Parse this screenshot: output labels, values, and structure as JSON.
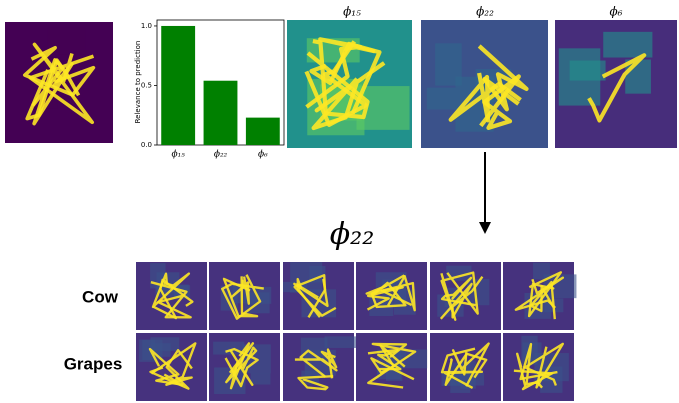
{
  "chart_data": {
    "type": "bar",
    "ylabel": "Relevance to prediction",
    "categories": [
      "ϕ₁₅",
      "ϕ₂₂",
      "ϕ₆"
    ],
    "values": [
      1.0,
      0.54,
      0.23
    ],
    "color": "#008000",
    "ylim": [
      0,
      1.05
    ],
    "yticks": [
      {
        "value": 0,
        "label": "0.0"
      },
      {
        "value": 0.5,
        "label": "0.5"
      },
      {
        "value": 1,
        "label": "1.0"
      }
    ]
  },
  "prototype_titles": [
    "ϕ₁₅",
    "ϕ₂₂",
    "ϕ₆"
  ],
  "heading": "ϕ₂₂",
  "rows": [
    "Cow",
    "Grapes"
  ]
}
